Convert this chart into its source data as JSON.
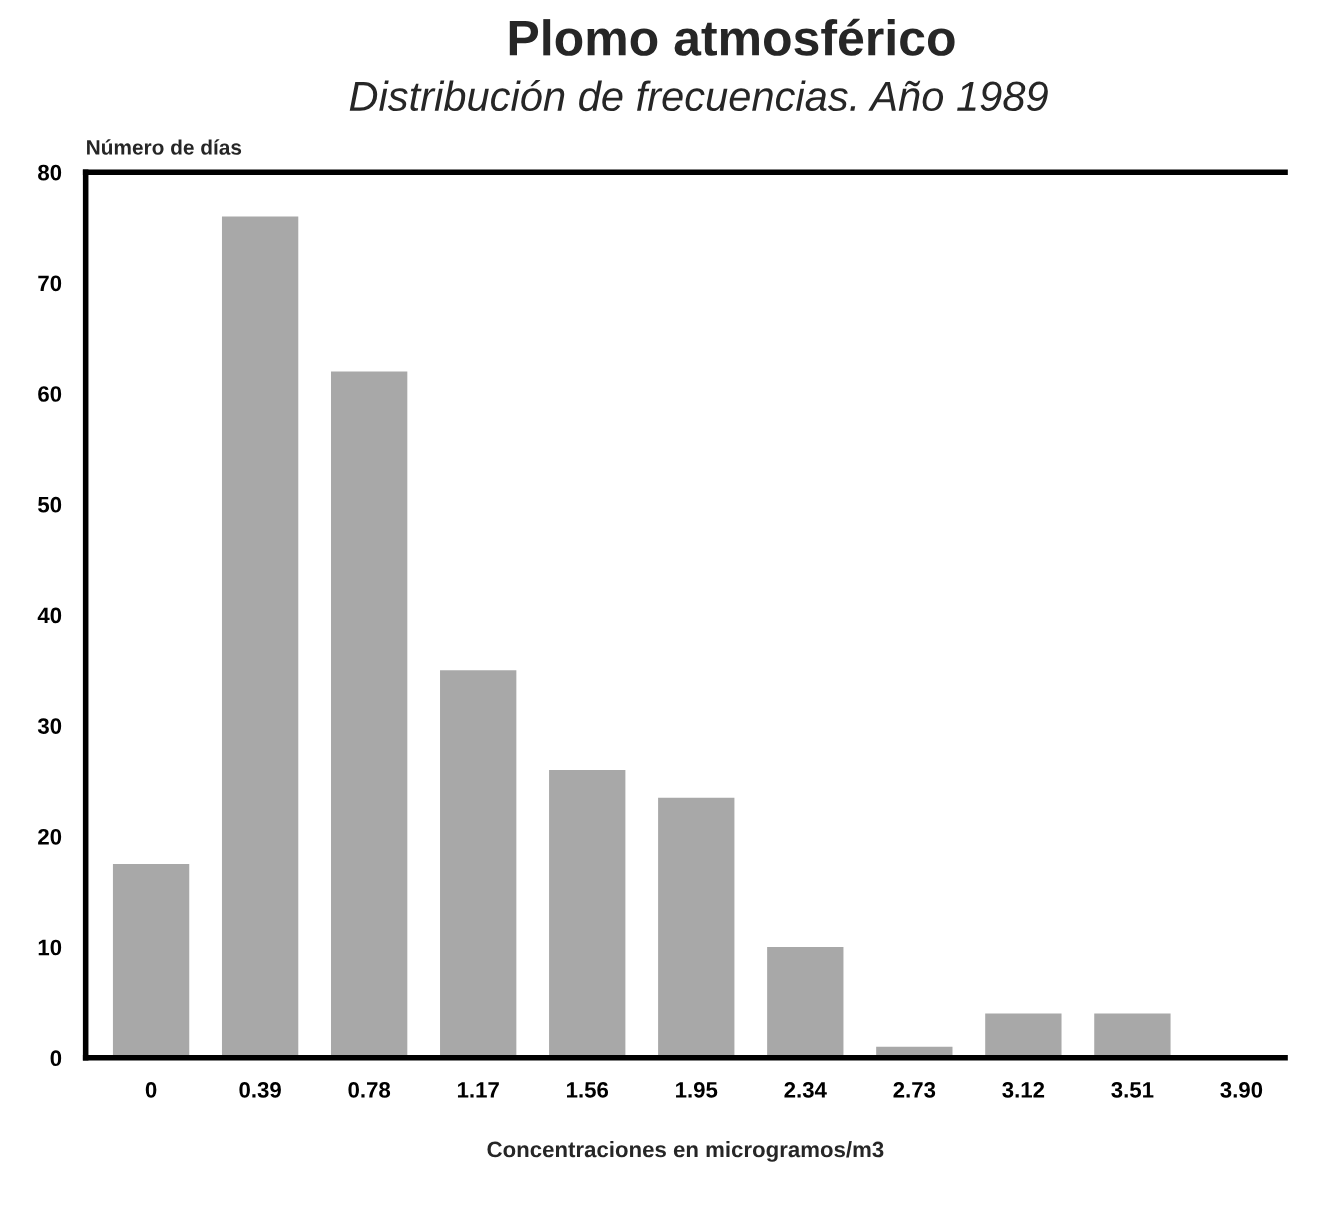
{
  "chart_data": {
    "type": "bar",
    "title": "Plomo atmosférico",
    "subtitle": "Distribución de frecuencias. Año 1989",
    "ylabel": "Número de días",
    "xlabel": "Concentraciones en microgramos/m3",
    "categories": [
      "0",
      "0.39",
      "0.78",
      "1.17",
      "1.56",
      "1.95",
      "2.34",
      "2.73",
      "3.12",
      "3.51",
      "3.90"
    ],
    "values": [
      17.5,
      76,
      62,
      35,
      26,
      23.5,
      10,
      1,
      4,
      4,
      0
    ],
    "color": "#a8a8a8",
    "ylim": [
      0,
      80
    ],
    "yticks": [
      0,
      10,
      20,
      30,
      40,
      50,
      60,
      70,
      80
    ],
    "grid": false,
    "legend": false
  }
}
